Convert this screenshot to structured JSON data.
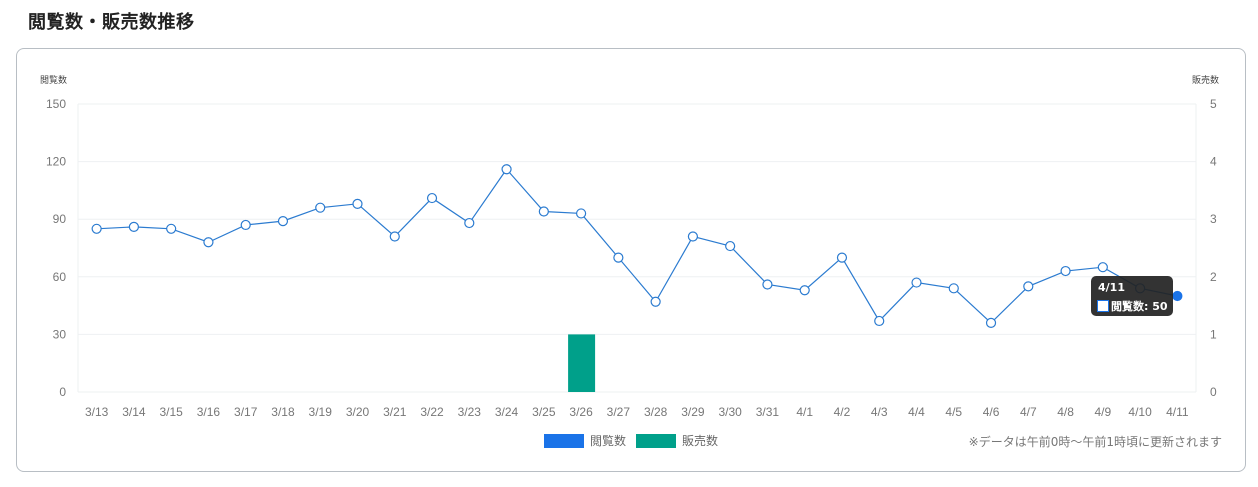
{
  "page": {
    "title": "閲覧数・販売数推移"
  },
  "chart_data": {
    "type": "line+bar",
    "title": "閲覧数・販売数推移",
    "categories": [
      "3/13",
      "3/14",
      "3/15",
      "3/16",
      "3/17",
      "3/18",
      "3/19",
      "3/20",
      "3/21",
      "3/22",
      "3/23",
      "3/24",
      "3/25",
      "3/26",
      "3/27",
      "3/28",
      "3/29",
      "3/30",
      "3/31",
      "4/1",
      "4/2",
      "4/3",
      "4/4",
      "4/5",
      "4/6",
      "4/7",
      "4/8",
      "4/9",
      "4/10",
      "4/11"
    ],
    "series": [
      {
        "name": "閲覧数",
        "type": "line",
        "axis": "left",
        "color": "#1a73e8",
        "values": [
          85,
          86,
          85,
          78,
          87,
          89,
          96,
          98,
          81,
          101,
          88,
          116,
          94,
          93,
          70,
          47,
          81,
          76,
          56,
          53,
          70,
          37,
          57,
          54,
          36,
          55,
          63,
          65,
          54,
          50
        ]
      },
      {
        "name": "販売数",
        "type": "bar",
        "axis": "right",
        "color": "#00a08a",
        "values": [
          0,
          0,
          0,
          0,
          0,
          0,
          0,
          0,
          0,
          0,
          0,
          0,
          0,
          1,
          0,
          0,
          0,
          0,
          0,
          0,
          0,
          0,
          0,
          0,
          0,
          0,
          0,
          0,
          0,
          0
        ]
      }
    ],
    "y_left": {
      "label": "閲覧数",
      "ticks": [
        0,
        30,
        60,
        90,
        120,
        150
      ],
      "range": [
        0,
        150
      ]
    },
    "y_right": {
      "label": "販売数",
      "ticks": [
        0,
        1,
        2,
        3,
        4,
        5
      ],
      "range": [
        0,
        5
      ]
    },
    "grid": true,
    "legend_position": "bottom"
  },
  "axes": {
    "left_title": "閲覧数",
    "right_title": "販売数",
    "left_ticks": [
      "150",
      "120",
      "90",
      "60",
      "30",
      "0"
    ],
    "right_ticks": [
      "5",
      "4",
      "3",
      "2",
      "1",
      "0"
    ]
  },
  "legend": [
    {
      "label": "閲覧数",
      "color": "#1a73e8"
    },
    {
      "label": "販売数",
      "color": "#00a08a"
    }
  ],
  "tooltip": {
    "title": "4/11",
    "label": "閲覧数: 50"
  },
  "note": "※データは午前0時〜午前1時頃に更新されます"
}
